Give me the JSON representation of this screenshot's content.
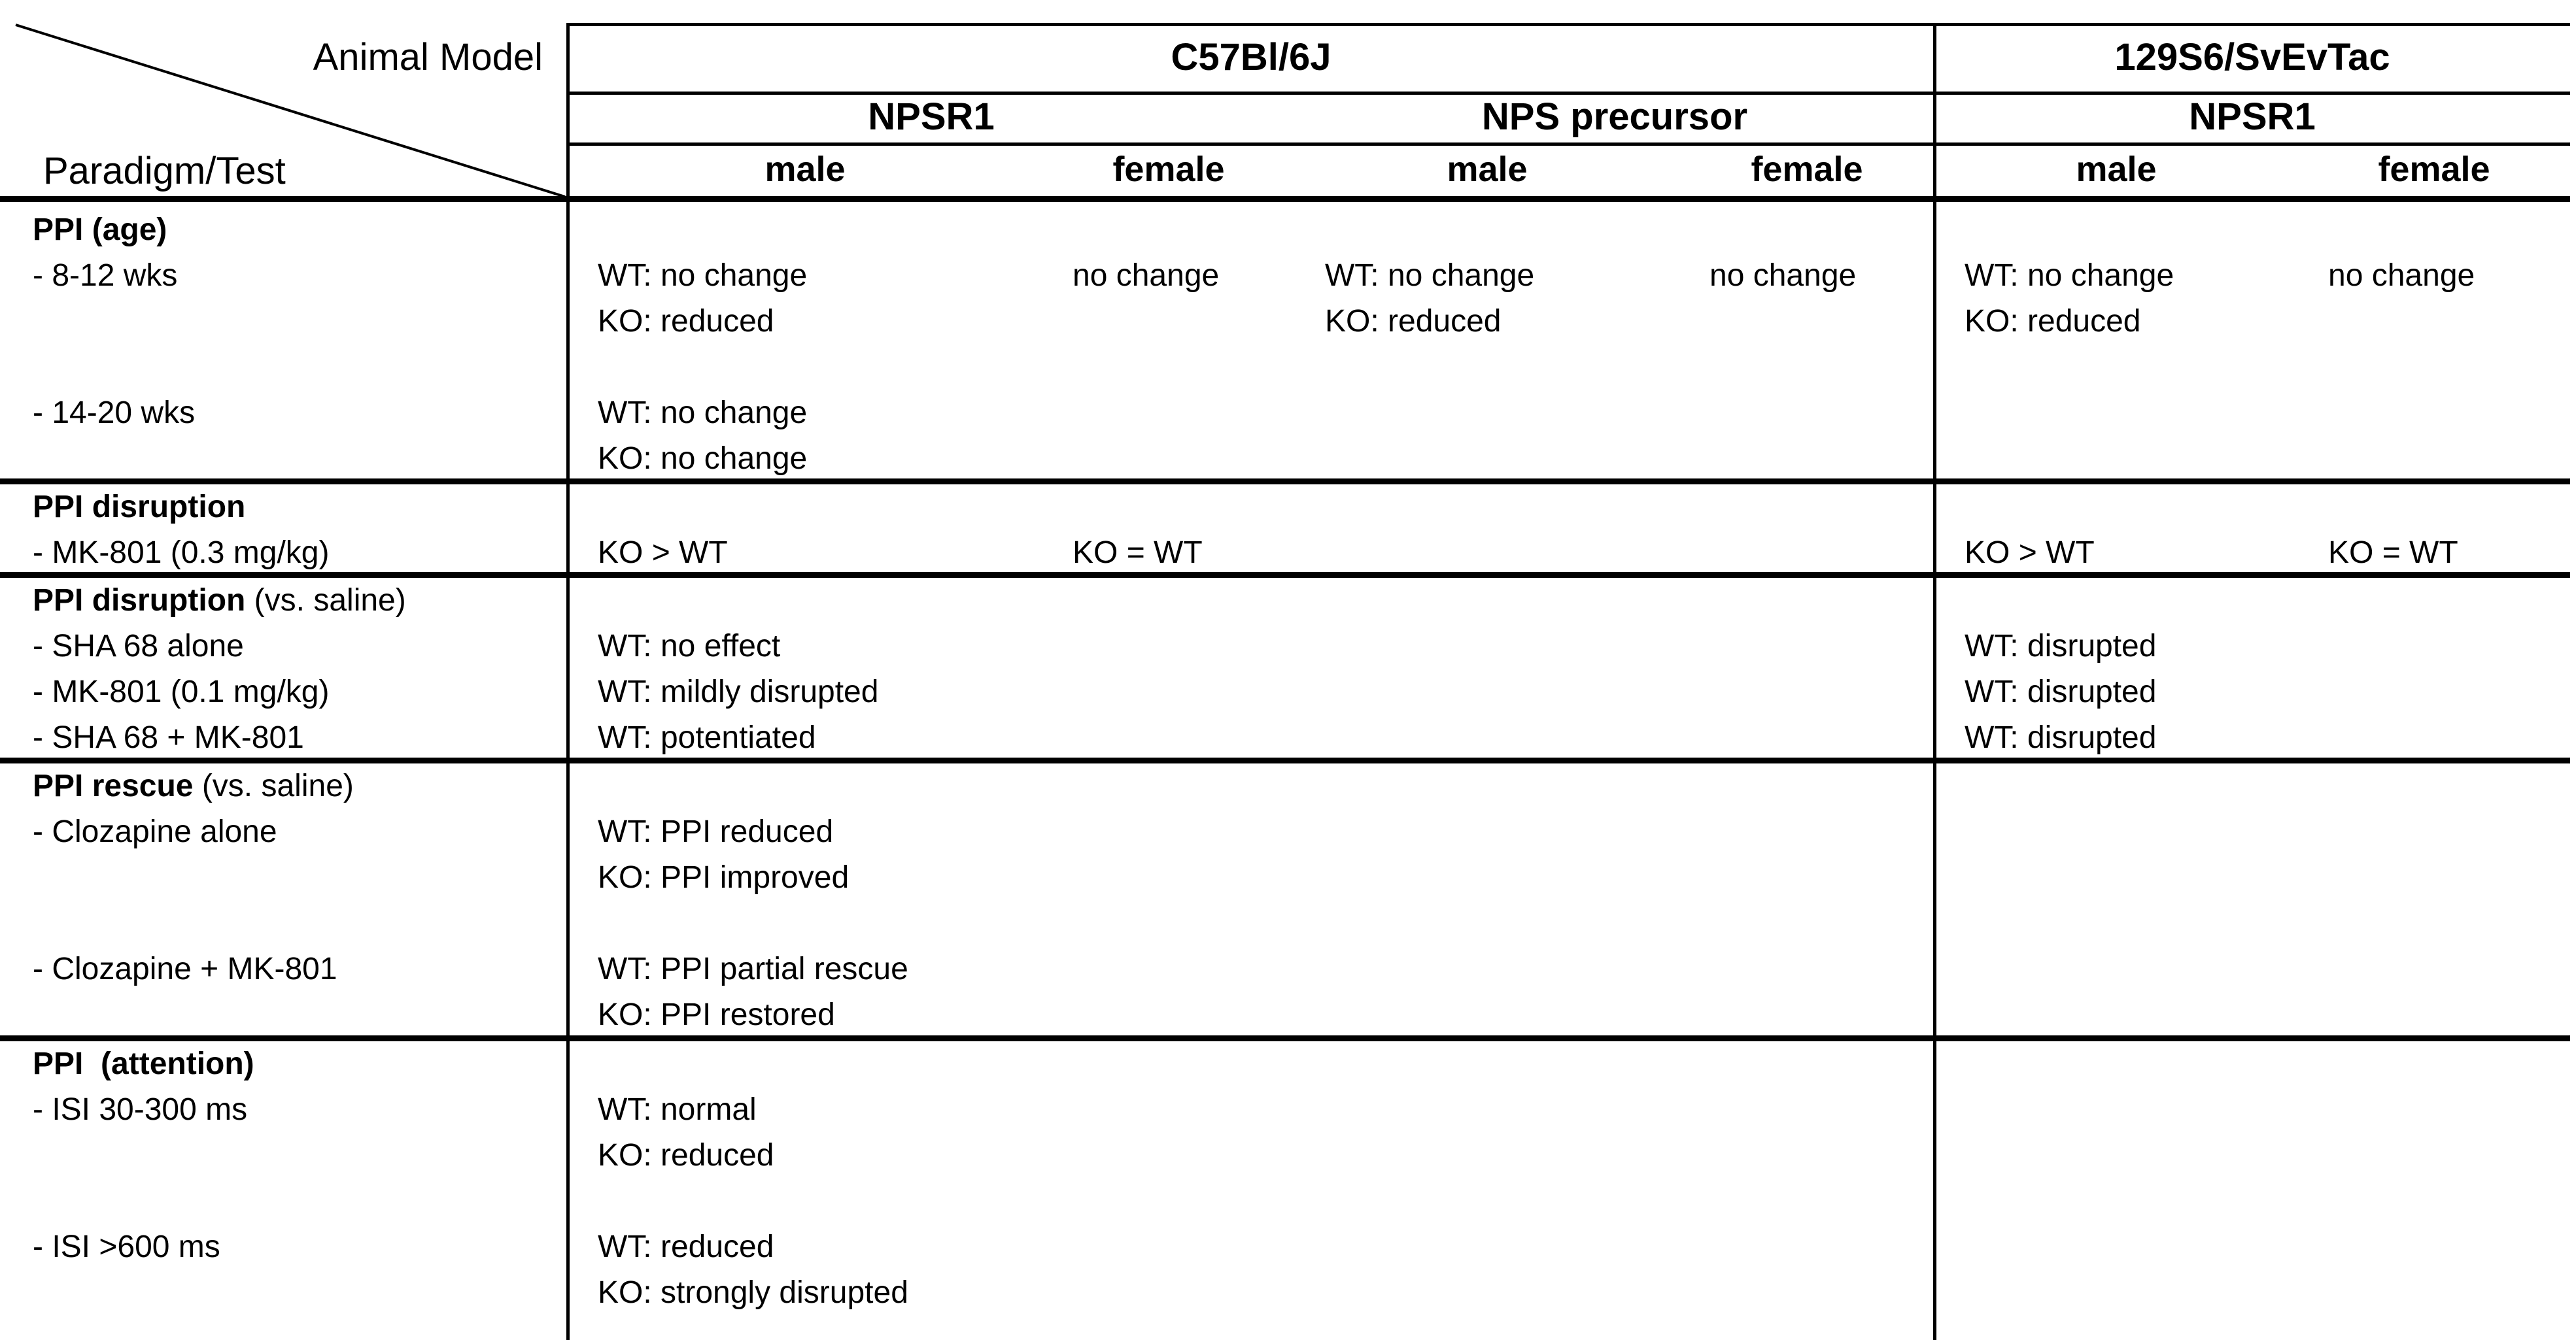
{
  "header": {
    "corner_top": "Animal Model",
    "corner_bottom": "Paradigm/Test",
    "strain_c57": "C57Bl/6J",
    "strain_129": "129S6/SvEvTac",
    "gene_c57_npsr1": "NPSR1",
    "gene_c57_nps": "NPS precursor",
    "gene_129_npsr1": "NPSR1",
    "sex": {
      "m1": "male",
      "f1": "female",
      "m2": "male",
      "f2": "female",
      "m3": "male",
      "f3": "female"
    }
  },
  "sections": [
    {
      "title_bold": "PPI (age)",
      "title_rest": "",
      "stub": [
        "- 8-12 wks",
        "",
        "",
        "- 14-20 wks",
        ""
      ],
      "m1": [
        "",
        "WT: no change",
        "KO: reduced",
        "",
        "WT: no change",
        "KO: no change"
      ],
      "f1": [
        "",
        "no change",
        "",
        "",
        "",
        ""
      ],
      "m2": [
        "",
        "WT: no change",
        "KO: reduced",
        "",
        "",
        ""
      ],
      "f2": [
        "",
        "no change",
        "",
        "",
        "",
        ""
      ],
      "m3": [
        "",
        "WT: no change",
        "KO: reduced",
        "",
        "",
        ""
      ],
      "f3": [
        "",
        "no change",
        "",
        "",
        "",
        ""
      ]
    },
    {
      "title_bold": "PPI disruption",
      "title_rest": "",
      "stub": [
        "- MK-801 (0.3 mg/kg)"
      ],
      "m1": [
        "",
        "KO > WT"
      ],
      "f1": [
        "",
        "KO = WT"
      ],
      "m2": [
        "",
        ""
      ],
      "f2": [
        "",
        ""
      ],
      "m3": [
        "",
        "KO > WT"
      ],
      "f3": [
        "",
        "KO = WT"
      ]
    },
    {
      "title_bold": "PPI disruption",
      "title_rest": " (vs. saline)",
      "stub": [
        "- SHA 68 alone",
        "- MK-801 (0.1 mg/kg)",
        "- SHA 68 + MK-801"
      ],
      "m1": [
        "",
        "WT: no effect",
        "WT: mildly disrupted",
        "WT: potentiated"
      ],
      "f1": [
        "",
        "",
        "",
        ""
      ],
      "m2": [
        "",
        "",
        "",
        ""
      ],
      "f2": [
        "",
        "",
        "",
        ""
      ],
      "m3": [
        "",
        "WT: disrupted",
        "WT: disrupted",
        "WT: disrupted"
      ],
      "f3": [
        "",
        "",
        "",
        ""
      ]
    },
    {
      "title_bold": "PPI rescue",
      "title_rest": " (vs. saline)",
      "stub": [
        "- Clozapine alone",
        "",
        "",
        "- Clozapine + MK-801",
        ""
      ],
      "m1": [
        "",
        "WT: PPI reduced",
        "KO: PPI improved",
        "",
        "WT: PPI partial rescue",
        "KO: PPI restored"
      ],
      "f1": [
        "",
        "",
        "",
        "",
        "",
        ""
      ],
      "m2": [
        "",
        "",
        "",
        "",
        "",
        ""
      ],
      "f2": [
        "",
        "",
        "",
        "",
        "",
        ""
      ],
      "m3": [
        "",
        "",
        "",
        "",
        "",
        ""
      ],
      "f3": [
        "",
        "",
        "",
        "",
        "",
        ""
      ]
    },
    {
      "title_bold": "PPI  (attention)",
      "title_rest": "",
      "stub": [
        "- ISI 30-300 ms",
        "",
        "",
        "- ISI >600 ms",
        ""
      ],
      "m1": [
        "",
        "WT: normal",
        "KO: reduced",
        "",
        "WT: reduced",
        "KO: strongly disrupted"
      ],
      "f1": [
        "",
        "",
        "",
        "",
        "",
        ""
      ],
      "m2": [
        "",
        "",
        "",
        "",
        "",
        ""
      ],
      "f2": [
        "",
        "",
        "",
        "",
        "",
        ""
      ],
      "m3": [
        "",
        "",
        "",
        "",
        "",
        ""
      ],
      "f3": [
        "",
        "",
        "",
        "",
        "",
        ""
      ]
    }
  ]
}
